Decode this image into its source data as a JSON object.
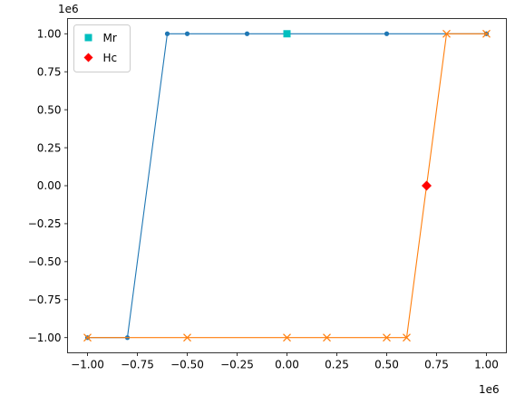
{
  "chart_data": {
    "type": "line",
    "title": "",
    "xlabel": "",
    "ylabel": "",
    "x_offset_label": "1e6",
    "y_offset_label": "1e6",
    "xlim": [
      -1.1,
      1.1
    ],
    "ylim": [
      -1.1,
      1.1
    ],
    "xticks": [
      -1.0,
      -0.75,
      -0.5,
      -0.25,
      0.0,
      0.25,
      0.5,
      0.75,
      1.0
    ],
    "xtick_labels": [
      "−1.00",
      "−0.75",
      "−0.50",
      "−0.25",
      "0.00",
      "0.25",
      "0.50",
      "0.75",
      "1.00"
    ],
    "yticks": [
      -1.0,
      -0.75,
      -0.5,
      -0.25,
      0.0,
      0.25,
      0.5,
      0.75,
      1.0
    ],
    "ytick_labels": [
      "−1.00",
      "−0.75",
      "−0.50",
      "−0.25",
      "0.00",
      "0.25",
      "0.50",
      "0.75",
      "1.00"
    ],
    "grid": false,
    "legend_position": "top-left",
    "series": [
      {
        "color": "#1f77b4",
        "marker": "dot",
        "x": [
          -1.0,
          -0.8,
          -0.6,
          -0.5,
          -0.2,
          0.0,
          0.5,
          1.0
        ],
        "y": [
          -1.0,
          -1.0,
          1.0,
          1.0,
          1.0,
          1.0,
          1.0,
          1.0
        ]
      },
      {
        "color": "#ff7f0e",
        "marker": "x",
        "x": [
          -1.0,
          -0.5,
          0.0,
          0.2,
          0.5,
          0.6,
          0.8,
          1.0
        ],
        "y": [
          -1.0,
          -1.0,
          -1.0,
          -1.0,
          -1.0,
          -1.0,
          1.0,
          1.0
        ]
      },
      {
        "name": "Mr",
        "color": "#00bfbf",
        "marker": "square",
        "x": [
          0.0
        ],
        "y": [
          1.0
        ]
      },
      {
        "name": "Hc",
        "color": "#ff0000",
        "marker": "diamond",
        "x": [
          0.7
        ],
        "y": [
          0.0
        ]
      }
    ]
  }
}
